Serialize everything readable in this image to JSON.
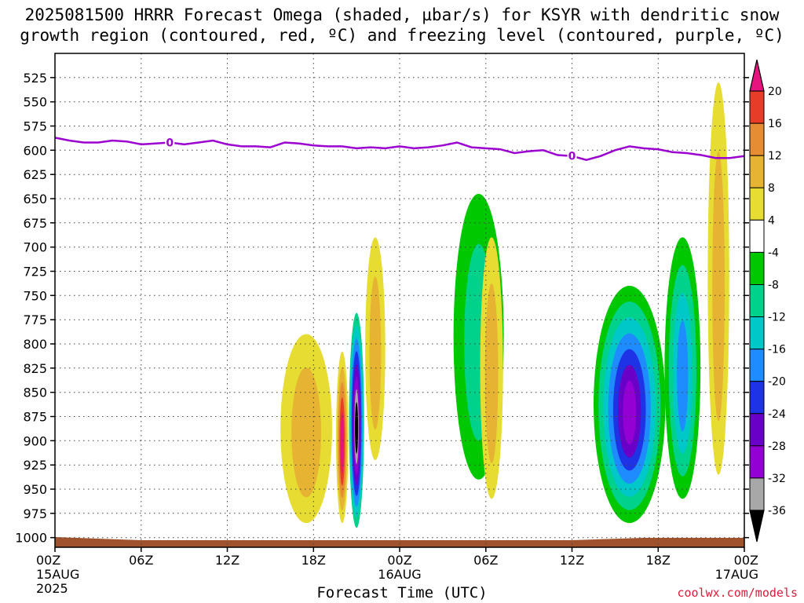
{
  "title_line1": "2025081500 HRRR Forecast Omega (shaded, µbar/s) for KSYR with dendritic snow",
  "title_line2": "growth region (contoured, red, ºC) and freezing level (contoured, purple, ºC)",
  "credit": "coolwx.com/models",
  "chart_data": {
    "type": "heatmap",
    "xlabel": "Forecast Time (UTC)",
    "ylabel": "",
    "x_ticks": [
      {
        "hour": 0,
        "label": "00Z",
        "sub1": "15AUG",
        "sub2": "2025"
      },
      {
        "hour": 6,
        "label": "06Z",
        "sub1": "",
        "sub2": ""
      },
      {
        "hour": 12,
        "label": "12Z",
        "sub1": "",
        "sub2": ""
      },
      {
        "hour": 18,
        "label": "18Z",
        "sub1": "",
        "sub2": ""
      },
      {
        "hour": 24,
        "label": "00Z",
        "sub1": "16AUG",
        "sub2": ""
      },
      {
        "hour": 30,
        "label": "06Z",
        "sub1": "",
        "sub2": ""
      },
      {
        "hour": 36,
        "label": "12Z",
        "sub1": "",
        "sub2": ""
      },
      {
        "hour": 42,
        "label": "18Z",
        "sub1": "",
        "sub2": ""
      },
      {
        "hour": 48,
        "label": "00Z",
        "sub1": "17AUG",
        "sub2": ""
      }
    ],
    "xlim": [
      0,
      48
    ],
    "y_ticks": [
      525,
      550,
      575,
      600,
      625,
      650,
      675,
      700,
      725,
      750,
      775,
      800,
      825,
      850,
      875,
      900,
      925,
      950,
      975,
      1000
    ],
    "ylim": [
      1010,
      500
    ],
    "grid": true,
    "colorbar": {
      "levels": [
        -36,
        -32,
        -28,
        -24,
        -20,
        -16,
        -12,
        -8,
        -4,
        4,
        8,
        12,
        16,
        20
      ],
      "labels": [
        "-36",
        "-32",
        "-28",
        "-24",
        "-20",
        "-16",
        "-12",
        "-8",
        "-4",
        "4",
        "8",
        "12",
        "16",
        "20"
      ],
      "colors": [
        "#000000",
        "#a8a8a8",
        "#9400d3",
        "#6a00c8",
        "#1e32e6",
        "#1e8cff",
        "#00c8c8",
        "#00d28c",
        "#00c800",
        "#ffffff",
        "#e6dc32",
        "#e6b432",
        "#e68c32",
        "#e63c28",
        "#e6147e"
      ]
    },
    "freezing_level": {
      "color": "#9b00d0",
      "label": "0",
      "points": [
        [
          0,
          587
        ],
        [
          1,
          590
        ],
        [
          2,
          592
        ],
        [
          3,
          592
        ],
        [
          4,
          590
        ],
        [
          5,
          591
        ],
        [
          6,
          594
        ],
        [
          7,
          593
        ],
        [
          8,
          592
        ],
        [
          9,
          594
        ],
        [
          10,
          592
        ],
        [
          11,
          590
        ],
        [
          12,
          594
        ],
        [
          13,
          596
        ],
        [
          14,
          596
        ],
        [
          15,
          597
        ],
        [
          16,
          592
        ],
        [
          17,
          593
        ],
        [
          18,
          595
        ],
        [
          19,
          596
        ],
        [
          20,
          596
        ],
        [
          21,
          598
        ],
        [
          22,
          597
        ],
        [
          23,
          598
        ],
        [
          24,
          596
        ],
        [
          25,
          598
        ],
        [
          26,
          597
        ],
        [
          27,
          595
        ],
        [
          28,
          592
        ],
        [
          29,
          597
        ],
        [
          30,
          598
        ],
        [
          31,
          599
        ],
        [
          32,
          603
        ],
        [
          33,
          601
        ],
        [
          34,
          600
        ],
        [
          35,
          605
        ],
        [
          36,
          606
        ],
        [
          37,
          610
        ],
        [
          38,
          606
        ],
        [
          39,
          600
        ],
        [
          40,
          596
        ],
        [
          41,
          598
        ],
        [
          42,
          599
        ],
        [
          43,
          602
        ],
        [
          44,
          603
        ],
        [
          45,
          605
        ],
        [
          46,
          608
        ],
        [
          47,
          608
        ],
        [
          48,
          606
        ]
      ],
      "label_hours": [
        8,
        36
      ]
    },
    "surface_color": "#a0522d",
    "omega_features": [
      {
        "name": "hour21-core",
        "hour": 21.0,
        "p_top": 768,
        "p_bot": 990,
        "width_h": 1.05,
        "levels": [
          -8,
          -12,
          -16,
          -20,
          -24,
          -28,
          -32,
          -36
        ]
      },
      {
        "name": "hour20-positive",
        "hour": 20.0,
        "p_top": 808,
        "p_bot": 985,
        "width_h": 0.85,
        "levels": [
          4,
          8,
          12,
          16,
          20
        ]
      },
      {
        "name": "hour17-broad-positive",
        "hour": 17.5,
        "p_top": 790,
        "p_bot": 985,
        "width_h": 3.6,
        "levels": [
          4,
          8
        ]
      },
      {
        "name": "hour22-positive",
        "hour": 22.3,
        "p_top": 690,
        "p_bot": 920,
        "width_h": 1.4,
        "levels": [
          4,
          8
        ]
      },
      {
        "name": "hour28-negative-band",
        "hour": 29.5,
        "p_top": 645,
        "p_bot": 940,
        "width_h": 3.5,
        "levels": [
          -4,
          -8
        ]
      },
      {
        "name": "hour30-positive-sliver",
        "hour": 30.4,
        "p_top": 690,
        "p_bot": 960,
        "width_h": 1.6,
        "levels": [
          4,
          8
        ]
      },
      {
        "name": "hour39-negative-core",
        "hour": 40.0,
        "p_top": 740,
        "p_bot": 985,
        "width_h": 5.0,
        "levels": [
          -4,
          -8,
          -12,
          -16,
          -20,
          -24,
          -28
        ]
      },
      {
        "name": "hour43-negative",
        "hour": 43.7,
        "p_top": 690,
        "p_bot": 960,
        "width_h": 2.5,
        "levels": [
          -4,
          -8,
          -12,
          -16
        ]
      },
      {
        "name": "hour46-positive",
        "hour": 46.2,
        "p_top": 530,
        "p_bot": 935,
        "width_h": 1.5,
        "levels": [
          4,
          8
        ]
      }
    ]
  }
}
